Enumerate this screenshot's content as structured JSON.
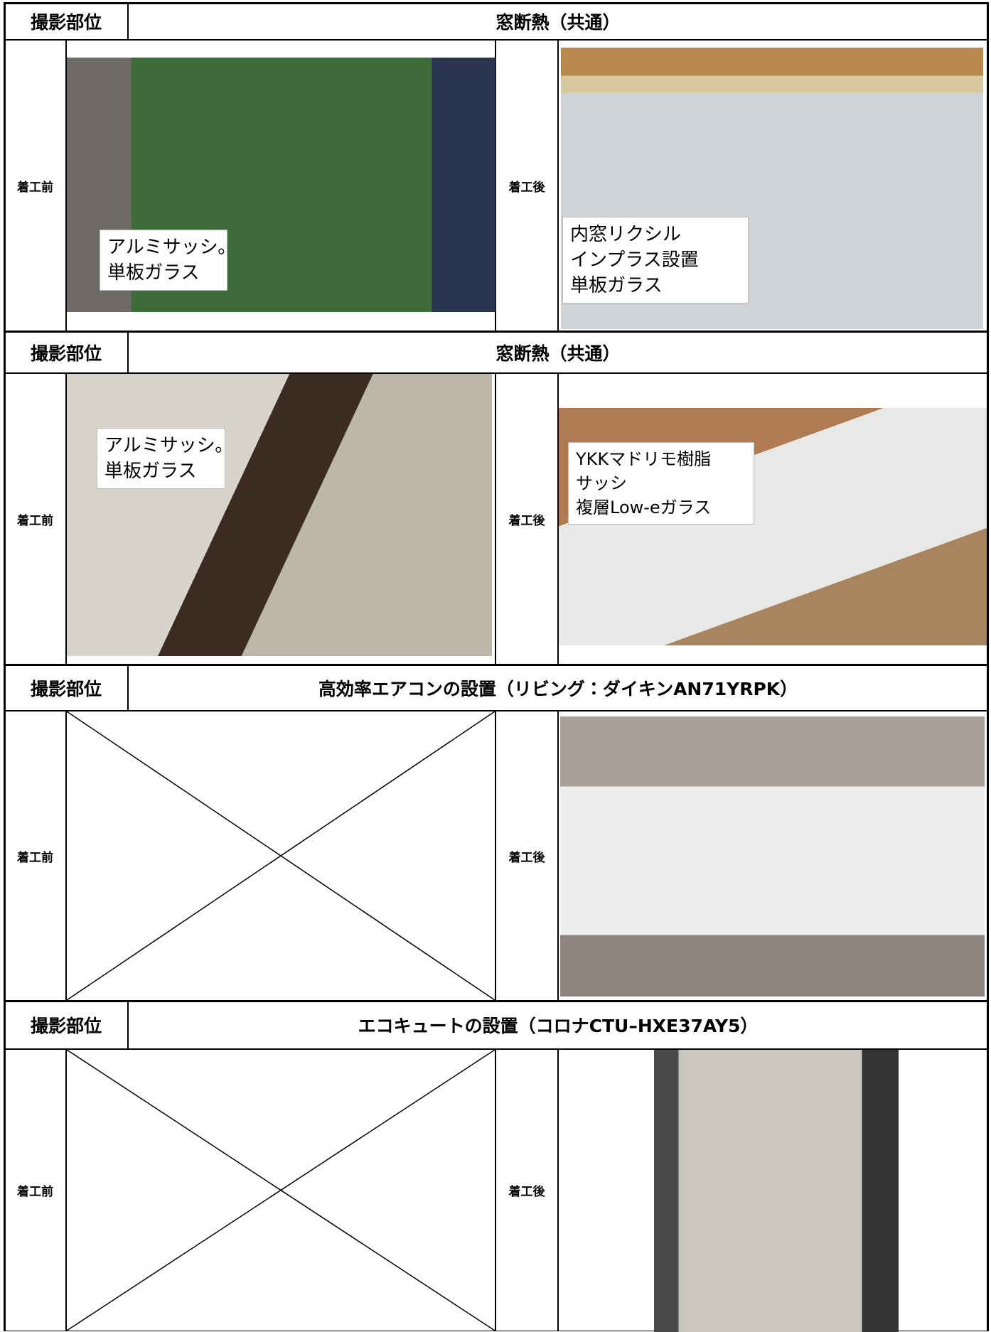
{
  "sections": [
    {
      "header": {
        "label": "撮影部位",
        "title": "窓断熱（共通）"
      },
      "before": {
        "label": "着工前",
        "note": [
          "アルミサッシ。",
          "単板ガラス"
        ]
      },
      "after": {
        "label": "着工後",
        "note": [
          "内窓リクシル",
          "インプラス設置",
          "単板ガラス"
        ]
      }
    },
    {
      "header": {
        "label": "撮影部位",
        "title": "窓断熱（共通）"
      },
      "before": {
        "label": "着工前",
        "note": [
          "アルミサッシ。",
          "単板ガラス"
        ]
      },
      "after": {
        "label": "着工後",
        "note": [
          "YKKマドリモ樹脂",
          "サッシ",
          "複層Low-eガラス"
        ]
      }
    },
    {
      "header": {
        "label": "撮影部位",
        "title": "高効率エアコンの設置（リビング：ダイキンAN71YRPK）"
      },
      "before": {
        "label": "着工前"
      },
      "after": {
        "label": "着工後"
      }
    },
    {
      "header": {
        "label": "撮影部位",
        "title": "エコキュートの設置（コロナCTU–HXE37AY5）"
      },
      "before": {
        "label": "着工前"
      },
      "after": {
        "label": "着工後"
      }
    }
  ]
}
